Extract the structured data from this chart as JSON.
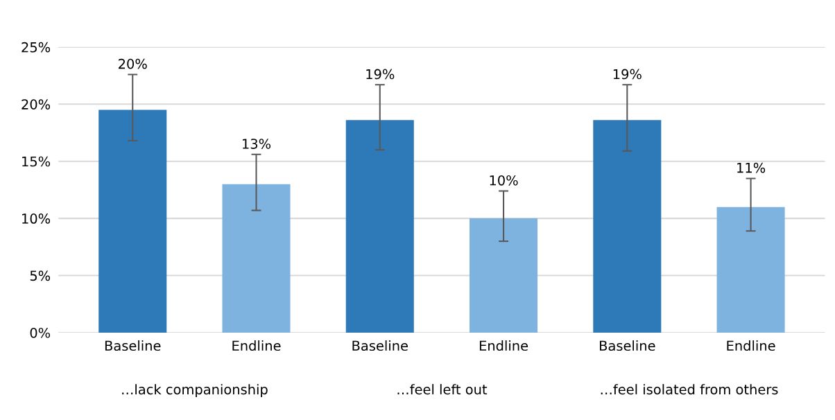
{
  "chart_data": {
    "type": "bar",
    "categories": [
      "Baseline",
      "Endline",
      "Baseline",
      "Endline",
      "Baseline",
      "Endline"
    ],
    "values": [
      19.5,
      13.0,
      18.6,
      10.0,
      18.6,
      11.0
    ],
    "colors": [
      "#2e7ab8",
      "#7eb2df",
      "#2e7ab8",
      "#7eb2df",
      "#2e7ab8",
      "#7eb2df"
    ],
    "errors": [
      [
        16.8,
        22.6
      ],
      [
        10.7,
        15.6
      ],
      [
        16.0,
        21.7
      ],
      [
        8.0,
        12.4
      ],
      [
        15.9,
        21.7
      ],
      [
        8.9,
        13.5
      ]
    ],
    "value_labels": [
      "20%",
      "13%",
      "19%",
      "10%",
      "19%",
      "11%"
    ],
    "ylim": [
      0,
      25
    ],
    "yticks": [
      {
        "value": 0,
        "label": "0%"
      },
      {
        "value": 5,
        "label": "5%"
      },
      {
        "value": 10,
        "label": "10%"
      },
      {
        "value": 15,
        "label": "15%"
      },
      {
        "value": 20,
        "label": "20%"
      },
      {
        "value": 25,
        "label": "25%"
      }
    ],
    "grid": "y",
    "annotations": [
      "…lack companionship",
      "…feel left out",
      "…feel isolated from others"
    ]
  }
}
